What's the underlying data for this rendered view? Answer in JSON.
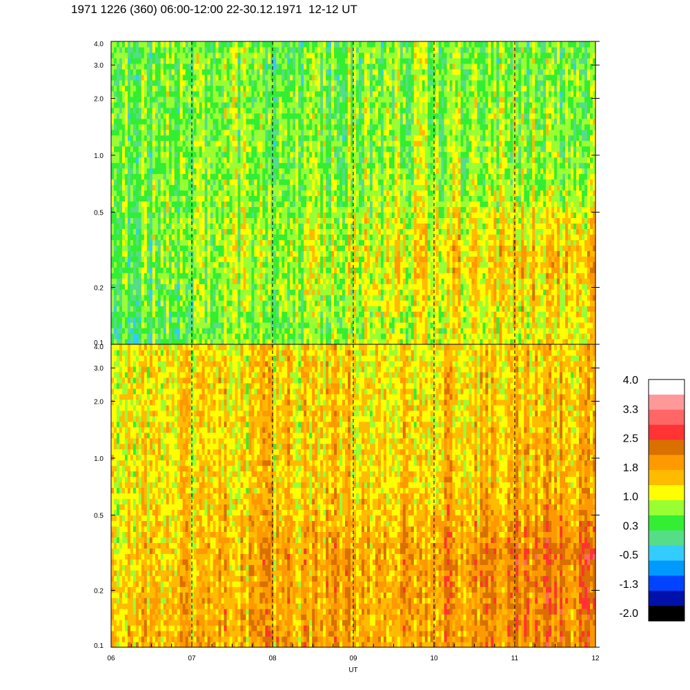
{
  "title": "1971 1226 (360) 06:00-12:00 22-30.12.1971  12-12 UT",
  "chart_data": [
    {
      "type": "heatmap",
      "panel": "upper",
      "title": "",
      "xlabel": "",
      "ylabel": "",
      "y_scale": "log",
      "ylim": [
        0.1,
        4.0
      ],
      "y_ticks": [
        "4.0",
        "3.0",
        "2.0",
        "1.0",
        "0.5",
        "0.2",
        "0.1"
      ],
      "xlim": [
        6,
        12
      ],
      "vlines": [
        7,
        8,
        9,
        10,
        11
      ],
      "value_profile": [
        {
          "y": 0.12,
          "x_start": 0.3,
          "x_end": 1.4
        },
        {
          "y": 0.3,
          "x_start": 0.5,
          "x_end": 1.8
        },
        {
          "y": 0.7,
          "x_start": 0.6,
          "x_end": 0.9
        },
        {
          "y": 3.0,
          "x_start": 0.6,
          "x_end": 0.7
        }
      ]
    },
    {
      "type": "heatmap",
      "panel": "lower",
      "title": "",
      "xlabel": "UT",
      "ylabel": "",
      "y_scale": "log",
      "ylim": [
        0.1,
        4.0
      ],
      "y_ticks": [
        "4.0",
        "3.0",
        "2.0",
        "1.0",
        "0.5",
        "0.2",
        "0.1"
      ],
      "x_ticks": [
        "06",
        "07",
        "08",
        "09",
        "10",
        "11",
        "12"
      ],
      "xlim": [
        6,
        12
      ],
      "vlines": [
        7,
        8,
        9,
        10,
        11
      ],
      "value_profile": [
        {
          "y": 0.12,
          "x_start": 1.6,
          "x_end": 2.1
        },
        {
          "y": 0.3,
          "x_start": 1.4,
          "x_end": 2.3
        },
        {
          "y": 0.7,
          "x_start": 1.3,
          "x_end": 1.7
        },
        {
          "y": 3.0,
          "x_start": 1.3,
          "x_end": 1.5
        }
      ]
    }
  ],
  "colorbar": {
    "labels": [
      "4.0",
      "3.3",
      "2.5",
      "1.8",
      "1.0",
      "0.3",
      "-0.5",
      "-1.3",
      "-2.0"
    ],
    "range": [
      -2.0,
      4.0
    ],
    "colors_top_to_bottom": [
      "#ffffff",
      "#ff9999",
      "#ff6666",
      "#ff3333",
      "#d97000",
      "#ff9900",
      "#ffbb00",
      "#ffff00",
      "#99ff33",
      "#33ee33",
      "#55dd88",
      "#33ccff",
      "#0099ff",
      "#0044ff",
      "#0011aa",
      "#000000"
    ]
  }
}
